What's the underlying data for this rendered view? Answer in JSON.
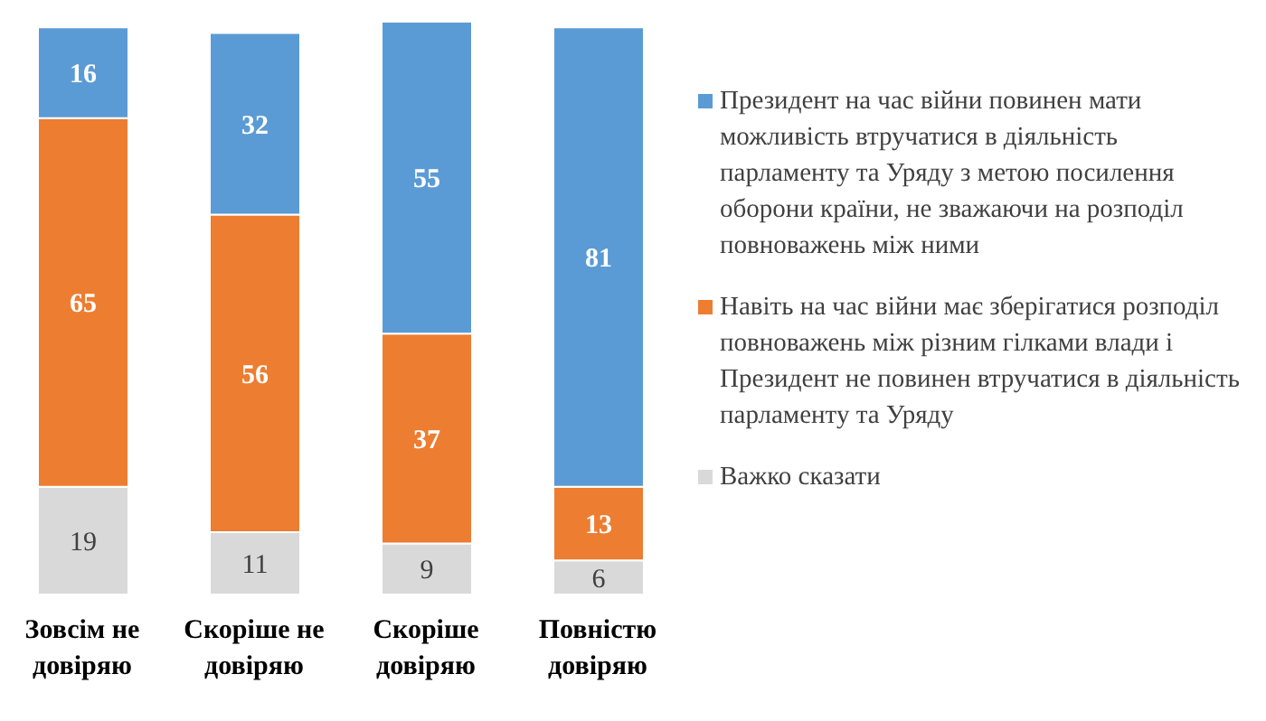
{
  "chart_data": {
    "type": "bar",
    "stacked": true,
    "data_labels": true,
    "legend": "right",
    "categories": [
      "Зовсім не довіряю",
      "Скоріше не довіряю",
      "Скоріше довіряю",
      "Повністю довіряю"
    ],
    "series": [
      {
        "name": "Важко сказати",
        "color": "#d9d9d9",
        "values": [
          19,
          11,
          9,
          6
        ]
      },
      {
        "name": "Навіть на час війни має зберігатися розподіл повноважень між різним гілками влади і Президент не повинен втручатися в діяльність парламенту та Уряду",
        "color": "#ed7d31",
        "values": [
          65,
          56,
          37,
          13
        ]
      },
      {
        "name": "Президент на час війни повинен мати можливість втручатися в діяльність парламенту та Уряду з метою посилення оборони країни, не зважаючи на розподіл повноважень між ними",
        "color": "#5b9bd5",
        "values": [
          16,
          32,
          55,
          81
        ]
      }
    ]
  }
}
